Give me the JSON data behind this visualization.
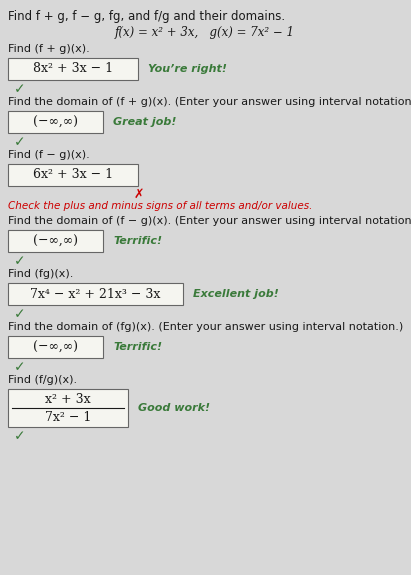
{
  "bg_color": "#d8d8d8",
  "title_line": "Find f + g, f − g, fg, and f/g and their domains.",
  "functions_line": "f(x) = x² + 3x,   g(x) = 7x² − 1",
  "sections": [
    {
      "question": "Find (f + g)(x).",
      "answer": "8x² + 3x − 1",
      "feedback": "You’re right!",
      "feedback_color": "#3a7a3a",
      "correct": true,
      "is_fraction": false
    },
    {
      "question": "Find the domain of (f + g)(x). (Enter your answer using interval notation.)",
      "answer": "(−∞,∞)",
      "feedback": "Great job!",
      "feedback_color": "#3a7a3a",
      "correct": true,
      "is_fraction": false
    },
    {
      "question": "Find (f − g)(x).",
      "answer": "6x² + 3x − 1",
      "feedback": "",
      "feedback_color": "#3a7a3a",
      "correct": false,
      "is_fraction": false,
      "hint": "Check the plus and minus signs of all terms and/or values."
    },
    {
      "question": "Find the domain of (f − g)(x). (Enter your answer using interval notation.)",
      "answer": "(−∞,∞)",
      "feedback": "Terrific!",
      "feedback_color": "#3a7a3a",
      "correct": true,
      "is_fraction": false
    },
    {
      "question": "Find (fg)(x).",
      "answer": "7x⁴ − x² + 21x³ − 3x",
      "feedback": "Excellent job!",
      "feedback_color": "#3a7a3a",
      "correct": true,
      "is_fraction": false
    },
    {
      "question": "Find the domain of (fg)(x). (Enter your answer using interval notation.)",
      "answer": "(−∞,∞)",
      "feedback": "Terrific!",
      "feedback_color": "#3a7a3a",
      "correct": true,
      "is_fraction": false
    },
    {
      "question": "Find (f/g)(x).",
      "answer": null,
      "answer_top": "x² + 3x",
      "answer_bottom": "7x² − 1",
      "feedback": "Good work!",
      "feedback_color": "#3a7a3a",
      "correct": true,
      "is_fraction": true
    }
  ],
  "checkmark_color": "#3a7a3a",
  "x_color": "#cc0000",
  "hint_color": "#cc0000",
  "box_facecolor": "#f5f5f0",
  "box_edgecolor": "#666666",
  "text_color": "#1a1a1a",
  "question_fontsize": 8,
  "answer_fontsize": 9,
  "feedback_fontsize": 8,
  "title_fontsize": 8.5,
  "func_fontsize": 8.5
}
